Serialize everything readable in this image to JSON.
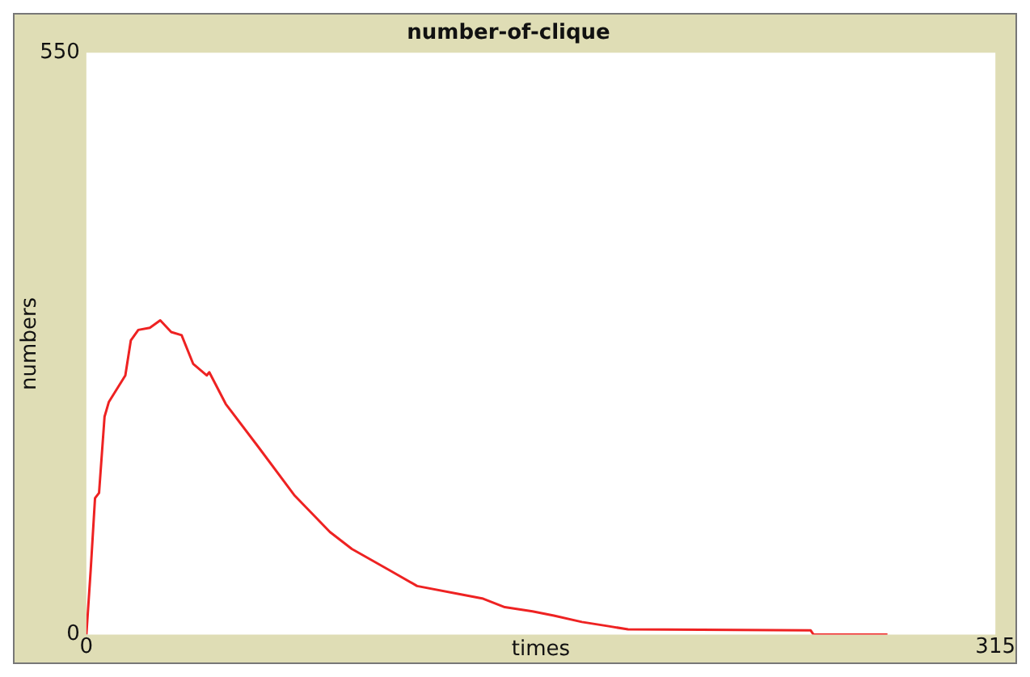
{
  "chart_data": {
    "type": "line",
    "title": "number-of-clique",
    "xlabel": "times",
    "ylabel": "numbers",
    "xlim": [
      0,
      315
    ],
    "xticks": [
      0,
      315
    ],
    "ylim": [
      0,
      550
    ],
    "yticks": [
      0,
      550
    ],
    "grid": false,
    "legend": false,
    "marker": "none",
    "series": [
      {
        "color": "#ee2222",
        "x": [
          0,
          1.5,
          3,
          4.4,
          6.3,
          7.8,
          13.5,
          15.4,
          18,
          22,
          25.6,
          29.4,
          33,
          37,
          41.7,
          42.6,
          48.3,
          59.7,
          72,
          84.4,
          92,
          105,
          114.6,
          129.8,
          137.5,
          145,
          154.6,
          162,
          171.7,
          181,
          187.7,
          251,
          252,
          277.6
        ],
        "values": [
          0,
          61,
          129,
          134,
          206,
          220,
          245,
          278,
          288,
          290,
          297,
          286,
          283,
          256,
          245,
          248,
          218,
          177,
          132,
          97,
          81,
          61,
          46,
          38,
          34,
          26,
          22,
          18,
          12,
          8,
          5,
          4,
          0,
          0
        ]
      }
    ]
  }
}
